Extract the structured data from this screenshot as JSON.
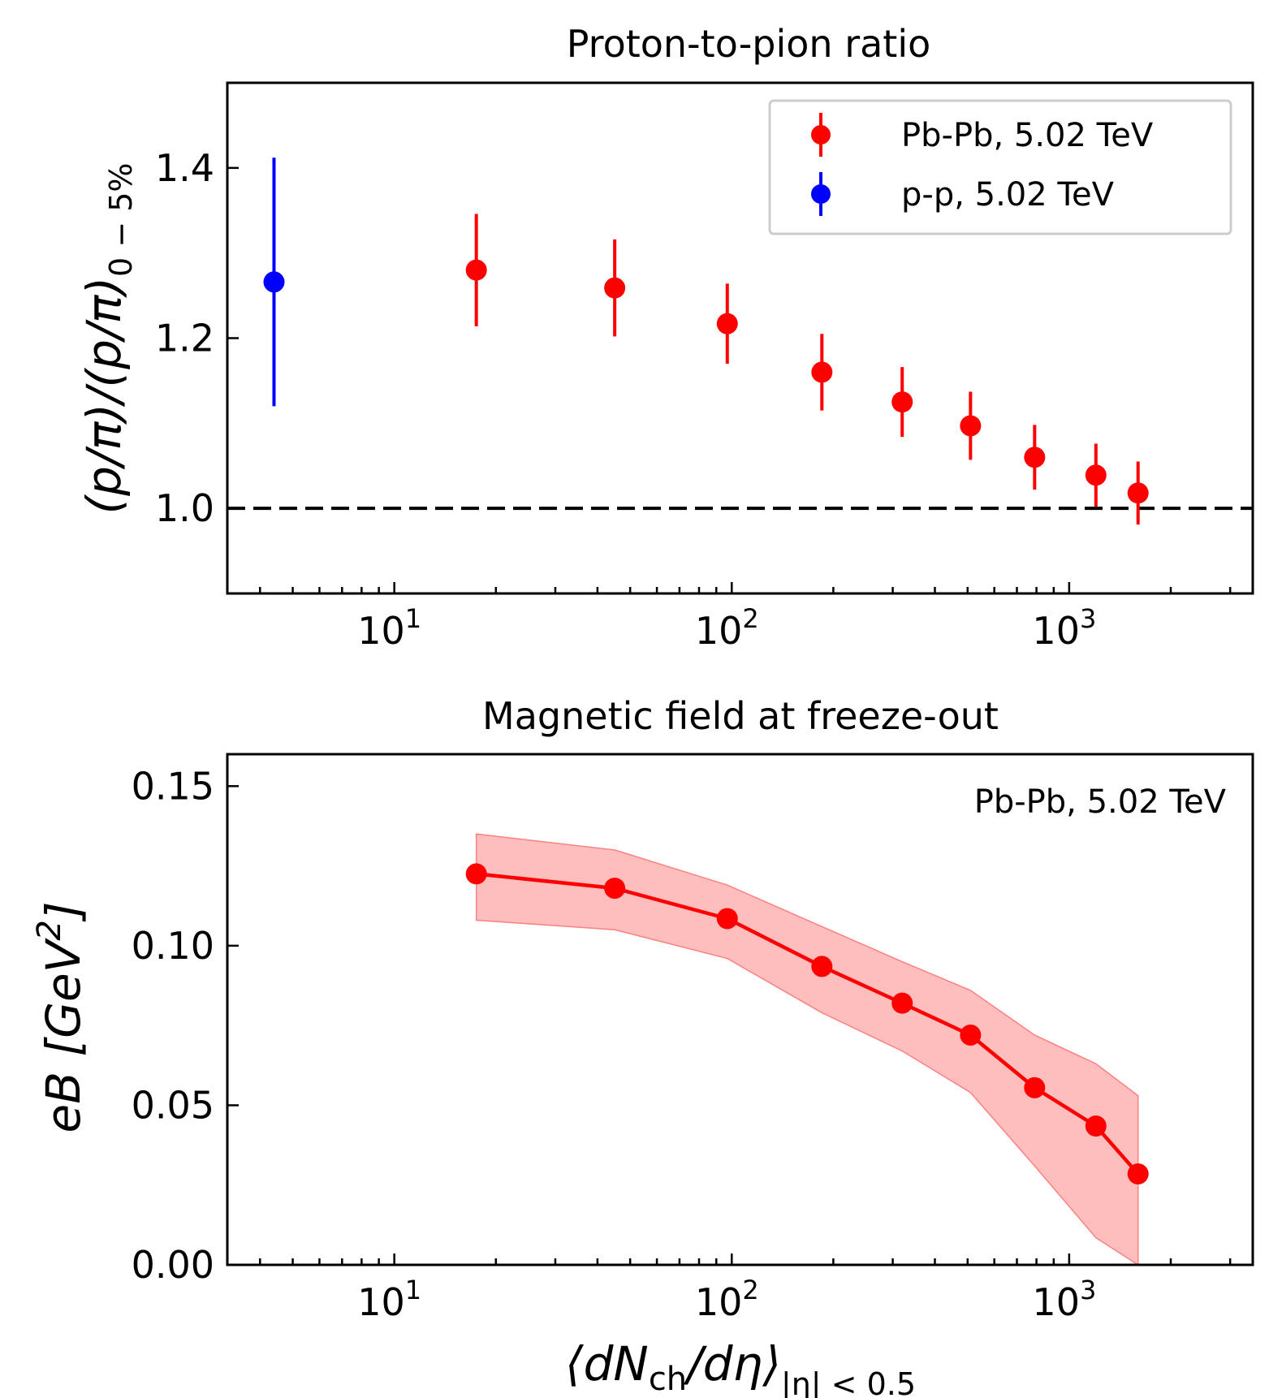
{
  "chart_data": [
    {
      "type": "scatter",
      "title": "Proton-to-pion ratio",
      "xscale": "log",
      "xlim": [
        3.2,
        3500
      ],
      "ylim": [
        0.9,
        1.5
      ],
      "x_ticks": [
        {
          "base": "10",
          "exp": "1",
          "value": 10
        },
        {
          "base": "10",
          "exp": "2",
          "value": 100
        },
        {
          "base": "10",
          "exp": "3",
          "value": 1000
        }
      ],
      "y_ticks": [
        {
          "label": "1.0",
          "value": 1.0
        },
        {
          "label": "1.2",
          "value": 1.2
        },
        {
          "label": "1.4",
          "value": 1.4
        }
      ],
      "ylabel": {
        "main": "(p/π)/(p/π)",
        "sub": "0 − 5%"
      },
      "reference_line": {
        "y": 1.0,
        "style": "dashed"
      },
      "legend_position": "top-right",
      "series": [
        {
          "name": "Pb-Pb, 5.02 TeV",
          "color": "#ff0000",
          "points": [
            {
              "x": 17.5,
              "y": 1.28,
              "err": 0.066
            },
            {
              "x": 45,
              "y": 1.259,
              "err": 0.057
            },
            {
              "x": 97,
              "y": 1.217,
              "err": 0.047
            },
            {
              "x": 185,
              "y": 1.16,
              "err": 0.045
            },
            {
              "x": 320,
              "y": 1.125,
              "err": 0.041
            },
            {
              "x": 510,
              "y": 1.097,
              "err": 0.04
            },
            {
              "x": 790,
              "y": 1.06,
              "err": 0.038
            },
            {
              "x": 1200,
              "y": 1.039,
              "err": 0.037
            },
            {
              "x": 1600,
              "y": 1.018,
              "err": 0.037
            }
          ]
        },
        {
          "name": "p-p, 5.02 TeV",
          "color": "#0000ff",
          "points": [
            {
              "x": 4.4,
              "y": 1.266,
              "err": 0.146
            }
          ]
        }
      ]
    },
    {
      "type": "line",
      "title": "Magnetic field at freeze-out",
      "xscale": "log",
      "xlim": [
        3.2,
        3500
      ],
      "ylim": [
        0.0,
        0.16
      ],
      "x_ticks": [
        {
          "base": "10",
          "exp": "1",
          "value": 10
        },
        {
          "base": "10",
          "exp": "2",
          "value": 100
        },
        {
          "base": "10",
          "exp": "3",
          "value": 1000
        }
      ],
      "y_ticks": [
        {
          "label": "0.00",
          "value": 0.0
        },
        {
          "label": "0.05",
          "value": 0.05
        },
        {
          "label": "0.10",
          "value": 0.1
        },
        {
          "label": "0.15",
          "value": 0.15
        }
      ],
      "ylabel": {
        "main": "eB [GeV",
        "sup": "2",
        "close": "]"
      },
      "xlabel": {
        "main_a": "⟨dN",
        "main_sub": "ch",
        "main_b": "/dη⟩",
        "sub": "|η| < 0.5"
      },
      "annotation": "Pb-Pb, 5.02 TeV",
      "series": [
        {
          "name": "Pb-Pb, 5.02 TeV",
          "color": "#ff0000",
          "band_color": "#ffb3b3",
          "points": [
            {
              "x": 17.5,
              "y": 0.1225,
              "lo": 0.108,
              "hi": 0.135
            },
            {
              "x": 45,
              "y": 0.118,
              "lo": 0.105,
              "hi": 0.13
            },
            {
              "x": 97,
              "y": 0.1085,
              "lo": 0.096,
              "hi": 0.119
            },
            {
              "x": 185,
              "y": 0.0935,
              "lo": 0.079,
              "hi": 0.106
            },
            {
              "x": 320,
              "y": 0.082,
              "lo": 0.067,
              "hi": 0.095
            },
            {
              "x": 510,
              "y": 0.072,
              "lo": 0.054,
              "hi": 0.086
            },
            {
              "x": 790,
              "y": 0.0555,
              "lo": 0.031,
              "hi": 0.072
            },
            {
              "x": 1200,
              "y": 0.0435,
              "lo": 0.0085,
              "hi": 0.063
            },
            {
              "x": 1600,
              "y": 0.0285,
              "lo": 0.0,
              "hi": 0.053
            }
          ]
        }
      ]
    }
  ]
}
